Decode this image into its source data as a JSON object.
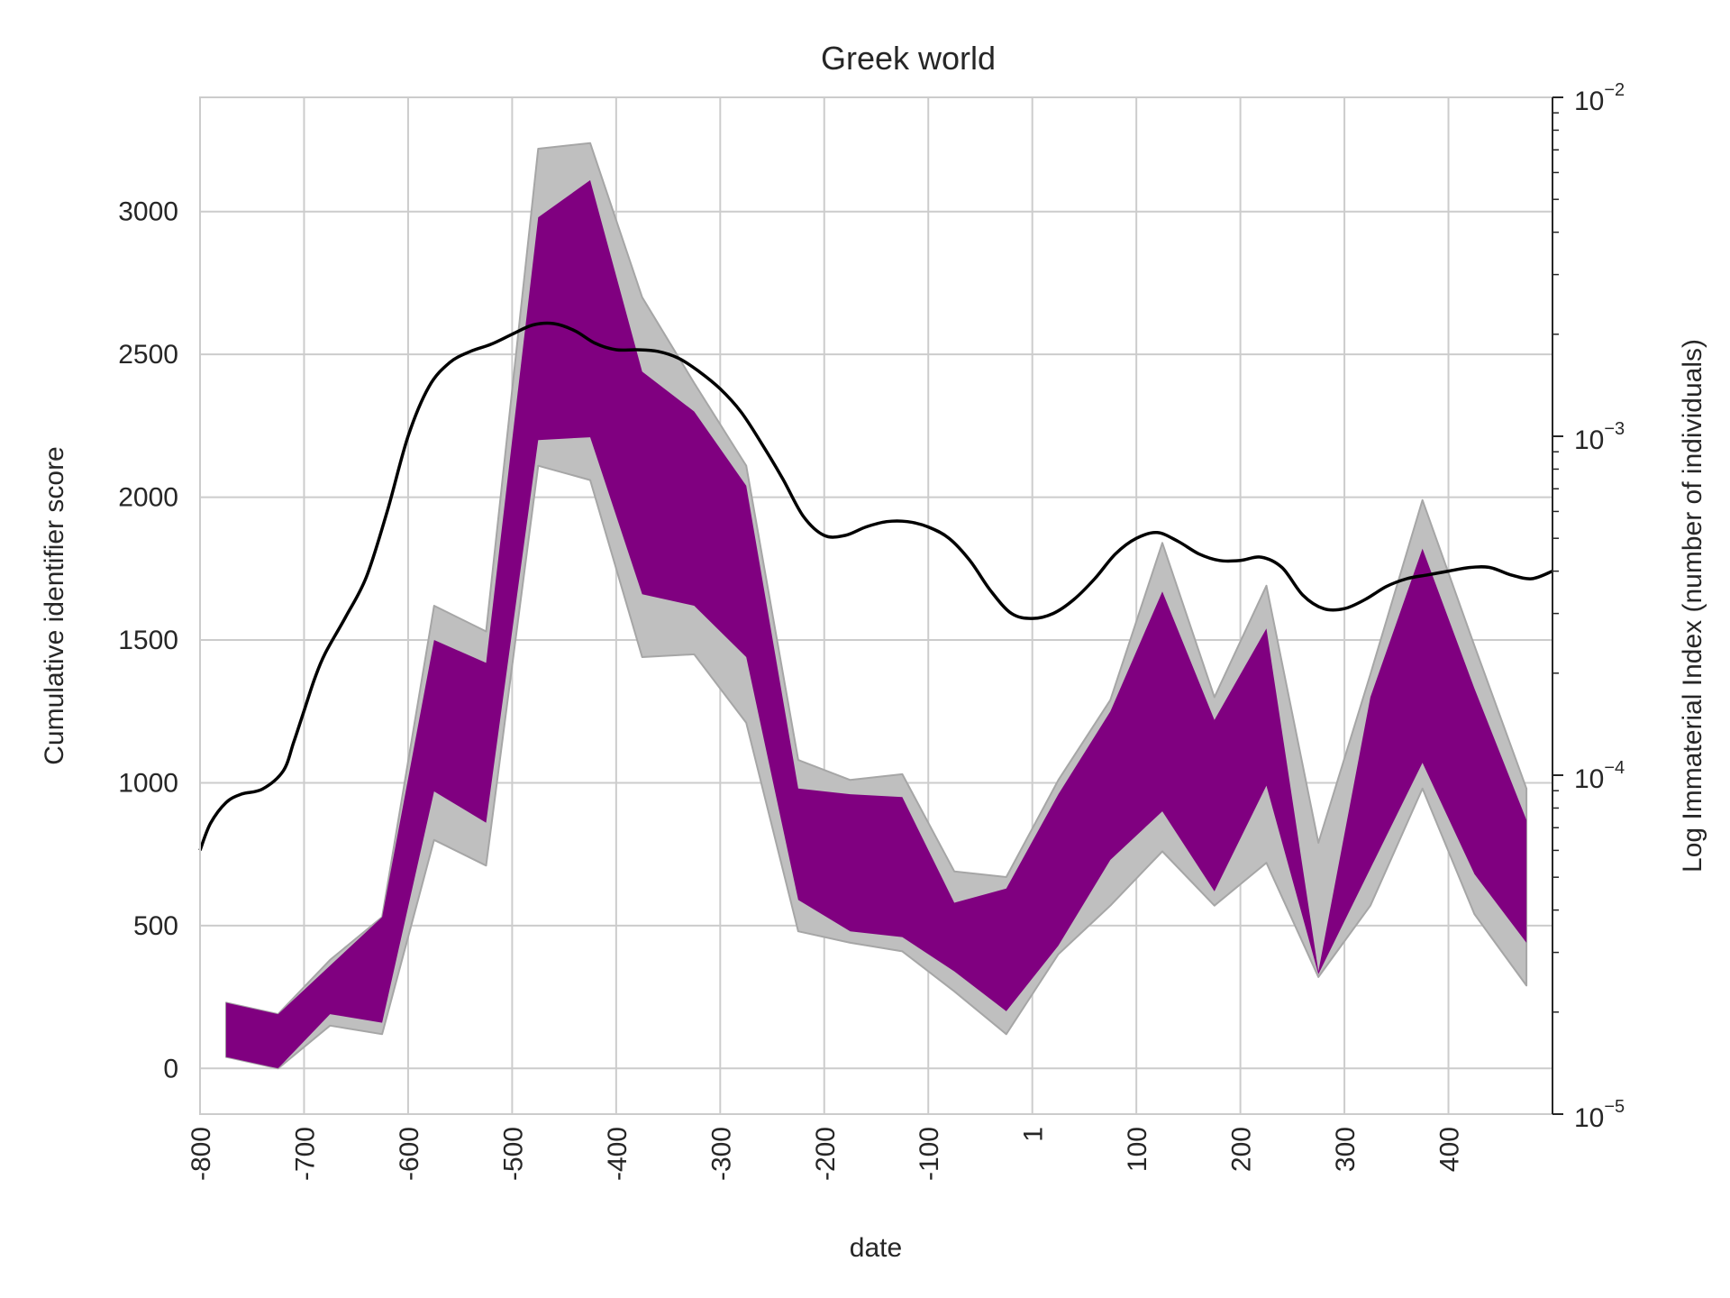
{
  "chart_data": {
    "type": "area",
    "title": "Greek world",
    "xlabel": "date",
    "ylabel_left": "Cumulative identifier score",
    "ylabel_right": "Log Immaterial Index (number of individuals)",
    "xlim": [
      -800,
      500
    ],
    "ylim_left": [
      -160,
      3400
    ],
    "ylim_right": [
      1e-05,
      0.01
    ],
    "right_scale": "log",
    "grid": true,
    "x_tick_labels": [
      "-800",
      "-700",
      "-600",
      "-500",
      "-400",
      "-300",
      "-200",
      "-100",
      "1",
      "100",
      "200",
      "300",
      "400"
    ],
    "x_tick_values": [
      -800,
      -700,
      -600,
      -500,
      -400,
      -300,
      -200,
      -100,
      0,
      100,
      200,
      300,
      400
    ],
    "y_left_ticks": [
      0,
      500,
      1000,
      1500,
      2000,
      2500,
      3000
    ],
    "y_right_ticks": [
      {
        "value": 1e-05,
        "base": "10",
        "exp": "−5"
      },
      {
        "value": 0.0001,
        "base": "10",
        "exp": "−4"
      },
      {
        "value": 0.001,
        "base": "10",
        "exp": "−3"
      },
      {
        "value": 0.01,
        "base": "10",
        "exp": "−2"
      }
    ],
    "colors": {
      "inner_band": "#800080",
      "outer_band": "#bfbfbf",
      "outer_band_edge": "#a6a6a6",
      "line": "#000000",
      "grid": "#cccccc"
    },
    "x": [
      -775,
      -725,
      -675,
      -625,
      -575,
      -525,
      -475,
      -425,
      -375,
      -325,
      -275,
      -225,
      -175,
      -125,
      -75,
      -25,
      25,
      75,
      125,
      175,
      225,
      275,
      325,
      375,
      425,
      475
    ],
    "outer_band": {
      "upper": [
        230,
        190,
        380,
        530,
        1620,
        1530,
        3220,
        3240,
        2700,
        2400,
        2110,
        1080,
        1010,
        1030,
        690,
        670,
        1010,
        1290,
        1840,
        1300,
        1690,
        790,
        1380,
        1990,
        1480,
        980
      ],
      "lower": [
        40,
        0,
        150,
        120,
        800,
        710,
        2110,
        2060,
        1440,
        1450,
        1210,
        480,
        440,
        410,
        270,
        120,
        400,
        570,
        760,
        570,
        720,
        320,
        570,
        980,
        540,
        290
      ]
    },
    "inner_band": {
      "upper": [
        230,
        190,
        360,
        530,
        1500,
        1420,
        2980,
        3110,
        2440,
        2300,
        2040,
        980,
        960,
        950,
        580,
        630,
        960,
        1250,
        1670,
        1220,
        1540,
        340,
        1300,
        1820,
        1330,
        870
      ],
      "lower": [
        40,
        0,
        190,
        160,
        970,
        860,
        2200,
        2210,
        1660,
        1620,
        1440,
        590,
        480,
        460,
        340,
        200,
        430,
        730,
        900,
        620,
        990,
        330,
        700,
        1070,
        680,
        440
      ]
    },
    "line_series": {
      "x": [
        -800,
        -790,
        -775,
        -760,
        -740,
        -720,
        -710,
        -700,
        -690,
        -680,
        -660,
        -640,
        -620,
        -600,
        -580,
        -560,
        -540,
        -520,
        -500,
        -480,
        -460,
        -440,
        -420,
        -400,
        -380,
        -360,
        -340,
        -320,
        -300,
        -280,
        -260,
        -240,
        -220,
        -200,
        -180,
        -160,
        -140,
        -120,
        -100,
        -80,
        -60,
        -40,
        -20,
        0,
        20,
        40,
        60,
        80,
        100,
        120,
        140,
        160,
        180,
        200,
        220,
        240,
        260,
        280,
        300,
        320,
        340,
        360,
        380,
        400,
        420,
        440,
        460,
        480,
        500
      ],
      "y": [
        6e-05,
        7.2e-05,
        8.3e-05,
        8.8e-05,
        9.1e-05,
        0.000103,
        0.000125,
        0.000155,
        0.000192,
        0.000228,
        0.000293,
        0.000385,
        0.000601,
        0.001,
        0.0014,
        0.00165,
        0.00178,
        0.00187,
        0.002,
        0.00213,
        0.00215,
        0.00205,
        0.00188,
        0.0018,
        0.0018,
        0.00178,
        0.0017,
        0.00155,
        0.00138,
        0.00118,
        0.00095,
        0.00075,
        0.00058,
        0.00051,
        0.00051,
        0.00054,
        0.00056,
        0.00056,
        0.00054,
        0.0005,
        0.00043,
        0.00035,
        0.0003,
        0.00029,
        0.0003,
        0.00033,
        0.00038,
        0.00045,
        0.0005,
        0.00052,
        0.00049,
        0.00045,
        0.00043,
        0.00043,
        0.00044,
        0.00041,
        0.00034,
        0.00031,
        0.00031,
        0.00033,
        0.00036,
        0.00038,
        0.00039,
        0.0004,
        0.00041,
        0.00041,
        0.00039,
        0.00038,
        0.0004
      ]
    }
  }
}
